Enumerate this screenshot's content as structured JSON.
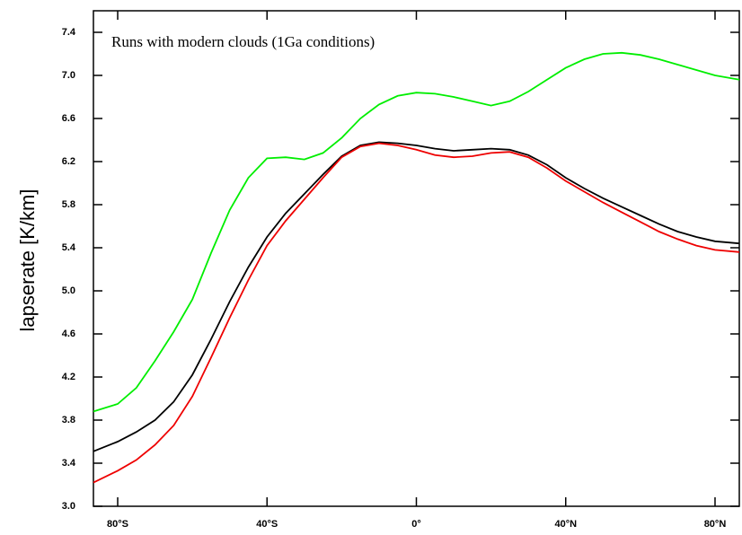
{
  "chart_data": {
    "type": "line",
    "annotation": "Runs with modern clouds (1Ga conditions)",
    "y_label": "lapserate [K/km]",
    "x": [
      -86.5,
      -80,
      -75,
      -70,
      -65,
      -60,
      -55,
      -50,
      -45,
      -40,
      -35,
      -30,
      -25,
      -20,
      -15,
      -10,
      -5,
      0,
      5,
      10,
      15,
      20,
      25,
      30,
      35,
      40,
      45,
      50,
      55,
      60,
      65,
      70,
      75,
      80,
      86.5
    ],
    "series": [
      {
        "color": "#00ee00",
        "values": [
          3.88,
          3.95,
          4.1,
          4.35,
          4.62,
          4.92,
          5.35,
          5.75,
          6.05,
          6.23,
          6.24,
          6.22,
          6.28,
          6.42,
          6.6,
          6.73,
          6.81,
          6.84,
          6.83,
          6.8,
          6.76,
          6.72,
          6.76,
          6.85,
          6.96,
          7.07,
          7.15,
          7.2,
          7.21,
          7.19,
          7.15,
          7.1,
          7.05,
          7.0,
          6.96
        ]
      },
      {
        "color": "#000000",
        "values": [
          3.51,
          3.6,
          3.69,
          3.8,
          3.97,
          4.22,
          4.55,
          4.9,
          5.22,
          5.5,
          5.72,
          5.9,
          6.08,
          6.25,
          6.35,
          6.38,
          6.37,
          6.35,
          6.32,
          6.3,
          6.31,
          6.32,
          6.31,
          6.26,
          6.17,
          6.05,
          5.95,
          5.86,
          5.78,
          5.7,
          5.62,
          5.55,
          5.5,
          5.46,
          5.44
        ]
      },
      {
        "color": "#ee0000",
        "values": [
          3.22,
          3.33,
          3.43,
          3.57,
          3.75,
          4.02,
          4.38,
          4.75,
          5.1,
          5.42,
          5.65,
          5.85,
          6.05,
          6.24,
          6.34,
          6.37,
          6.35,
          6.31,
          6.26,
          6.24,
          6.25,
          6.28,
          6.29,
          6.24,
          6.14,
          6.02,
          5.92,
          5.82,
          5.73,
          5.64,
          5.55,
          5.48,
          5.42,
          5.38,
          5.36
        ]
      }
    ],
    "xlim": [
      -86.5,
      86.5
    ],
    "xticks": [
      {
        "value": -80,
        "label": "80°S"
      },
      {
        "value": -40,
        "label": "40°S"
      },
      {
        "value": 0,
        "label": "0°"
      },
      {
        "value": 40,
        "label": "40°N"
      },
      {
        "value": 80,
        "label": "80°N"
      }
    ],
    "ylim": [
      3.0,
      7.6
    ],
    "yticks": [
      {
        "value": 3,
        "label": "3.0"
      },
      3.4,
      3.8,
      4.2,
      4.6,
      {
        "value": 5,
        "label": "5.0"
      },
      5.4,
      5.8,
      6.2,
      6.6,
      {
        "value": 7,
        "label": "7.0"
      },
      7.4
    ],
    "grid": false
  }
}
